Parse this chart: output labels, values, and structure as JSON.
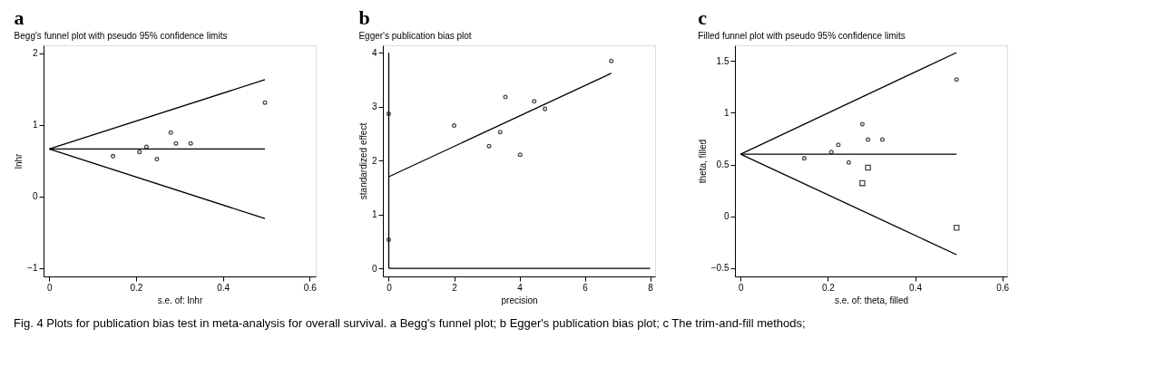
{
  "chart_data": [
    {
      "type": "scatter",
      "title": "a",
      "subtitle": "Begg's funnel plot with pseudo 95% confidence limits",
      "xlabel": "s.e. of: lnhr",
      "ylabel": "lnhr",
      "xlim": [
        -0.013,
        0.614
      ],
      "ylim": [
        -1.12,
        2.11
      ],
      "xticks": [
        0,
        0.2,
        0.4,
        0.6
      ],
      "yticks": [
        -1,
        0,
        1,
        2
      ],
      "grid": false,
      "legend": false,
      "marker": "circle",
      "annotations": [
        "Fig. 4  Plots for publication bias test in meta-analysis for overall survival. a Begg's funnel plot; b Egger's publication bias plot; c The trim-and-fill methods;"
      ],
      "series": [
        {
          "type": "line",
          "marker": "none",
          "color": "#000000",
          "x": [
            0,
            0.497
          ],
          "values": [
            0.66,
            1.63
          ]
        },
        {
          "type": "line",
          "marker": "none",
          "color": "#000000",
          "x": [
            0,
            0.497
          ],
          "values": [
            0.66,
            0.66
          ]
        },
        {
          "type": "line",
          "marker": "none",
          "color": "#000000",
          "x": [
            0,
            0.497
          ],
          "values": [
            0.66,
            -0.31
          ]
        },
        {
          "color": "#000000",
          "x": [
            0.147,
            0.208,
            0.224,
            0.248,
            0.28,
            0.292,
            0.326,
            0.497
          ],
          "values": [
            0.56,
            0.62,
            0.69,
            0.52,
            0.89,
            0.74,
            0.74,
            1.31
          ]
        }
      ]
    },
    {
      "type": "scatter",
      "title": "b",
      "subtitle": "Egger's publication bias plot",
      "xlabel": "precision",
      "ylabel": "standardized effect",
      "xlim": [
        -0.18,
        8.15
      ],
      "ylim": [
        -0.15,
        4.14
      ],
      "xticks": [
        0,
        2,
        4,
        6,
        8
      ],
      "yticks": [
        0,
        1,
        2,
        3,
        4
      ],
      "grid": false,
      "legend": false,
      "marker": "circle",
      "series": [
        {
          "type": "line",
          "marker": "none",
          "color": "#000000",
          "x": [
            0,
            0
          ],
          "values": [
            0,
            4
          ]
        },
        {
          "type": "line",
          "marker": "none",
          "color": "#000000",
          "x": [
            0,
            8
          ],
          "values": [
            0,
            0
          ]
        },
        {
          "type": "line",
          "marker": "none",
          "color": "#000000",
          "x": [
            0,
            6.81
          ],
          "values": [
            1.7,
            3.62
          ]
        },
        {
          "color": "#000000",
          "x": [
            2.0,
            3.07,
            3.41,
            3.57,
            4.02,
            4.45,
            4.78,
            6.81
          ],
          "values": [
            2.65,
            2.27,
            2.53,
            3.18,
            2.11,
            3.1,
            2.96,
            3.85
          ]
        },
        {
          "color": "#000000",
          "x": [
            0,
            0
          ],
          "values": [
            2.87,
            0.53
          ]
        }
      ]
    },
    {
      "type": "scatter",
      "title": "c",
      "subtitle": "Filled funnel plot with pseudo 95% confidence limits",
      "xlabel": "s.e. of: theta, filled",
      "ylabel": "theta, filled",
      "xlim": [
        -0.013,
        0.611
      ],
      "ylim": [
        -0.58,
        1.65
      ],
      "xticks": [
        0,
        0.2,
        0.4,
        0.6
      ],
      "yticks": [
        -0.5,
        0,
        0.5,
        1,
        1.5
      ],
      "grid": false,
      "legend": false,
      "marker": "circle",
      "series": [
        {
          "type": "line",
          "marker": "none",
          "color": "#000000",
          "x": [
            0,
            0.495
          ],
          "values": [
            0.6,
            1.58
          ]
        },
        {
          "type": "line",
          "marker": "none",
          "color": "#000000",
          "x": [
            0,
            0.495
          ],
          "values": [
            0.6,
            0.6
          ]
        },
        {
          "type": "line",
          "marker": "none",
          "color": "#000000",
          "x": [
            0,
            0.495
          ],
          "values": [
            0.6,
            -0.37
          ]
        },
        {
          "color": "#000000",
          "x": [
            0.146,
            0.208,
            0.224,
            0.248,
            0.279,
            0.292,
            0.325,
            0.495
          ],
          "values": [
            0.56,
            0.62,
            0.69,
            0.52,
            0.89,
            0.74,
            0.74,
            1.32
          ]
        },
        {
          "marker": "square",
          "color": "#000000",
          "x": [
            0.279,
            0.292,
            0.495
          ],
          "values": [
            0.32,
            0.47,
            -0.11
          ]
        }
      ]
    }
  ]
}
